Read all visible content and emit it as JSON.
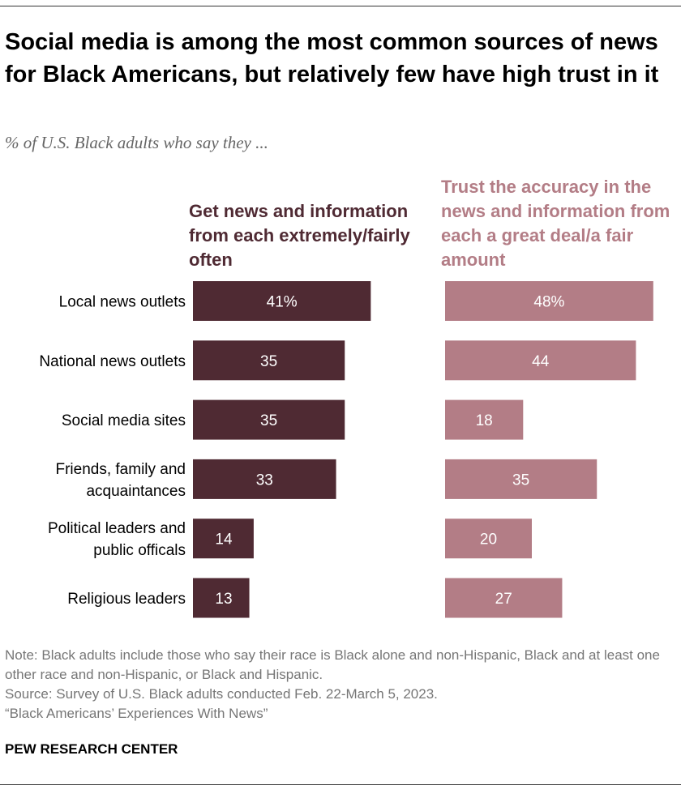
{
  "title": "Social media is among the most common sources of news for Black Americans, but relatively few have high trust in it",
  "subtitle": "% of U.S. Black adults who say they ...",
  "chart_data": {
    "type": "bar",
    "orientation": "horizontal",
    "categories": [
      [
        "Local news outlets"
      ],
      [
        "National news outlets"
      ],
      [
        "Social media sites"
      ],
      [
        "Friends, family and",
        "acquaintances"
      ],
      [
        "Political leaders and",
        "public officals"
      ],
      [
        "Religious leaders"
      ]
    ],
    "series": [
      {
        "name": "Get news and information from each extremely/fairly often",
        "values": [
          41,
          35,
          35,
          33,
          14,
          13
        ],
        "labels": [
          "41%",
          "35",
          "35",
          "33",
          "14",
          "13"
        ],
        "color": "#4f2a33"
      },
      {
        "name": "Trust the accuracy in the news and information from each a great deal/a fair amount",
        "values": [
          48,
          44,
          18,
          35,
          20,
          27
        ],
        "labels": [
          "48%",
          "44",
          "18",
          "35",
          "20",
          "27"
        ],
        "color": "#b37d86"
      }
    ],
    "legend": "column headers above bars"
  },
  "notes": [
    "Note: Black adults include those who say their race is Black alone and non-Hispanic, Black and at least one other race and non-Hispanic, or Black and Hispanic.",
    "Source: Survey of U.S. Black adults conducted Feb. 22-March 5, 2023.",
    "“Black Americans’ Experiences With News”"
  ],
  "brand": "PEW RESEARCH CENTER"
}
